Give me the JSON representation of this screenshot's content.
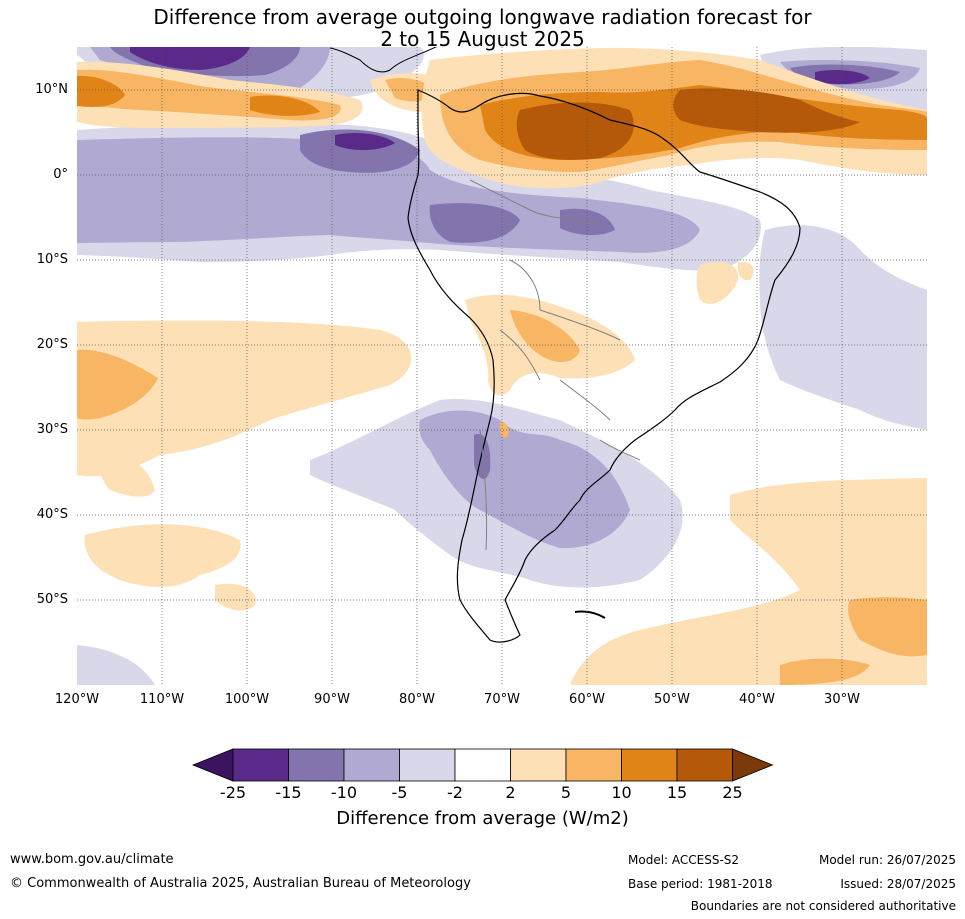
{
  "title": {
    "line1": "Difference from average outgoing longwave radiation forecast for",
    "line2": "2 to 15 August 2025"
  },
  "lat_labels": [
    "10°N",
    "0°",
    "10°S",
    "20°S",
    "30°S",
    "40°S",
    "50°S"
  ],
  "lon_labels": [
    "120°W",
    "110°W",
    "100°W",
    "90°W",
    "80°W",
    "70°W",
    "60°W",
    "50°W",
    "40°W",
    "30°W"
  ],
  "colorbar": {
    "ticks": [
      "-25",
      "-15",
      "-10",
      "-5",
      "-2",
      "2",
      "5",
      "10",
      "15",
      "25"
    ],
    "colors": [
      "#3b1460",
      "#5a2a8a",
      "#8374ae",
      "#b0a9d2",
      "#d9d8ea",
      "#ffffff",
      "#fde0b5",
      "#f8b563",
      "#e08418",
      "#b35909",
      "#7a3a0a"
    ],
    "label": "Difference from average (W/m2)"
  },
  "footer": {
    "url": "www.bom.gov.au/climate",
    "copyright": "© Commonwealth of Australia 2025, Australian Bureau of Meteorology",
    "model": "Model: ACCESS-S2",
    "base_period": "Base period: 1981-2018",
    "model_run": "Model run: 26/07/2025",
    "issued": "Issued: 28/07/2025",
    "disclaimer": "Boundaries are not considered authoritative"
  }
}
